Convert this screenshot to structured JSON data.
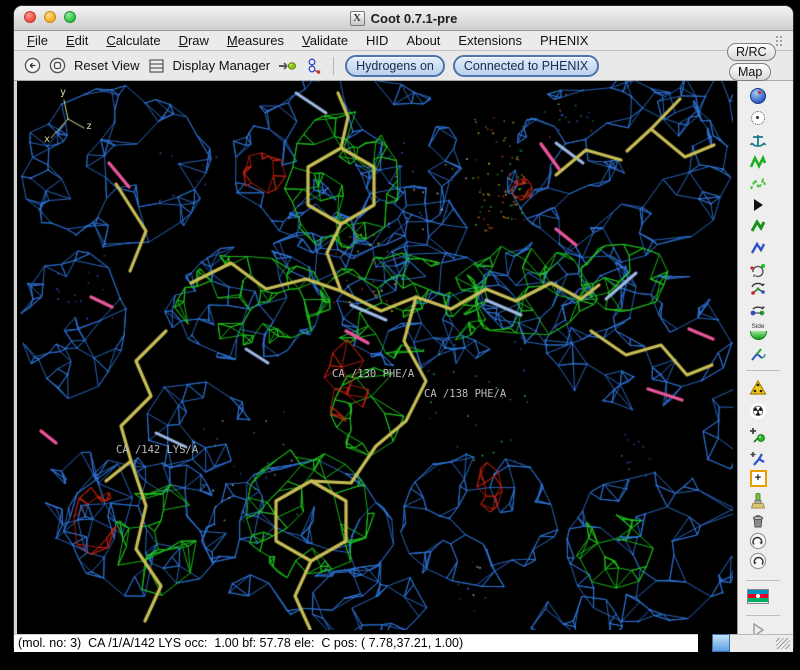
{
  "window": {
    "title": "Coot 0.7.1-pre",
    "title_icon": "X"
  },
  "menu": {
    "items": [
      "File",
      "Edit",
      "Calculate",
      "Draw",
      "Measures",
      "Validate",
      "HID",
      "About",
      "Extensions",
      "PHENIX"
    ]
  },
  "toolbar": {
    "reset_view": "Reset View",
    "display_manager": "Display Manager",
    "toggles": [
      "Hydrogens on",
      "Connected to PHENIX"
    ]
  },
  "side_buttons": {
    "rrc": "R/RC",
    "map": "Map"
  },
  "sidebar": {
    "side_label": "Side",
    "icons": [
      "globe-icon",
      "target-circle-icon",
      "anchor-icon",
      "real-space-refine-icon",
      "regularize-zone-icon",
      "fixed-atoms-icon",
      "rigid-body-fit-icon",
      "rotamer-fit-icon",
      "edit-chi-angles-icon",
      "torsion-general-icon",
      "flip-peptide-icon",
      "side-chain-180-icon",
      "jed-flip-icon",
      "mutate-icon",
      "simple-mutate-icon",
      "add-terminal-residue-icon",
      "add-alt-conf-icon",
      "add-atom-icon",
      "clear-pending-icon",
      "delete-item-icon",
      "undo-icon",
      "redo-icon",
      "azerbaijan-flag-icon",
      "run-script-icon"
    ]
  },
  "canvas": {
    "atom_labels": [
      {
        "text": "CA /130 PHE/A"
      },
      {
        "text": "CA /138 PHE/A"
      },
      {
        "text": "CA /142 LYS/A"
      }
    ],
    "axis": {
      "x": "x",
      "y": "y",
      "z": "z"
    }
  },
  "statusbar": {
    "text": "(mol. no: 3)  CA /1/A/142 LYS occ:  1.00 bf: 57.78 ele:  C pos: ( 7.78,37.21, 1.00)"
  },
  "colors": {
    "map_blue": "#2e74d8",
    "map_green": "#1ec41e",
    "diff_red": "#cc2310",
    "model_yellow": "#c8bd55",
    "model_pale_blue": "#9cb8e4",
    "model_pink": "#e8559a",
    "toggle_border": "#4d74a8",
    "toggle_fill": "#cfe2f6",
    "axis": "#d4dca4",
    "dust_yellow": "#d4c21e",
    "dust_orange": "#e07818",
    "dust_green": "#2cc040",
    "dust_blue": "#3a5ad0",
    "dust_red": "#d03020",
    "dust_white": "#c0c4d8"
  }
}
